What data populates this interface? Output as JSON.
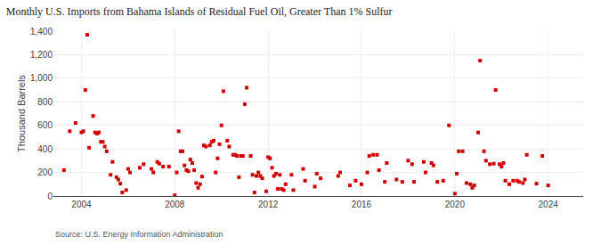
{
  "chart_data": {
    "type": "scatter",
    "title": "Monthly U.S. Imports from Bahama Islands of Residual Fuel Oil, Greater Than 1% Sulfur",
    "ylabel": "Thousand Barrels",
    "source": "Source: U.S. Energy Information Administration",
    "color": "#CC0000",
    "marker": "square",
    "grid": true,
    "xlim": [
      2002.8,
      2025.5
    ],
    "xticks": [
      2004,
      2008,
      2012,
      2016,
      2020,
      2024
    ],
    "ylim": [
      0,
      1400
    ],
    "yticks": [
      0,
      200,
      400,
      600,
      800,
      {
        "value": 1000,
        "label": "1,000"
      },
      {
        "value": 1200,
        "label": "1,200"
      },
      {
        "value": 1400,
        "label": "1,400"
      }
    ],
    "x": [
      2003.25,
      2003.5,
      2003.75,
      2004.0,
      2004.083,
      2004.167,
      2004.25,
      2004.33,
      2004.5,
      2004.583,
      2004.667,
      2004.75,
      2004.833,
      2004.917,
      2005.0,
      2005.083,
      2005.25,
      2005.333,
      2005.5,
      2005.583,
      2005.667,
      2005.75,
      2005.917,
      2006.0,
      2006.083,
      2006.5,
      2006.667,
      2007.0,
      2007.083,
      2007.25,
      2007.333,
      2007.5,
      2007.75,
      2008.0,
      2008.083,
      2008.167,
      2008.25,
      2008.333,
      2008.417,
      2008.5,
      2008.583,
      2008.667,
      2008.75,
      2008.833,
      2008.917,
      2009.0,
      2009.083,
      2009.167,
      2009.25,
      2009.333,
      2009.5,
      2009.583,
      2009.667,
      2009.75,
      2009.833,
      2009.917,
      2010.0,
      2010.083,
      2010.25,
      2010.333,
      2010.5,
      2010.583,
      2010.667,
      2010.75,
      2010.833,
      2010.917,
      2011.0,
      2011.083,
      2011.25,
      2011.333,
      2011.417,
      2011.5,
      2011.583,
      2011.667,
      2011.75,
      2011.917,
      2012.0,
      2012.083,
      2012.167,
      2012.25,
      2012.333,
      2012.417,
      2012.5,
      2012.583,
      2012.667,
      2012.75,
      2013.0,
      2013.083,
      2013.5,
      2013.583,
      2014.0,
      2014.083,
      2014.25,
      2015.0,
      2015.083,
      2015.5,
      2015.75,
      2016.0,
      2016.25,
      2016.333,
      2016.5,
      2016.667,
      2016.75,
      2017.0,
      2017.083,
      2017.5,
      2017.75,
      2018.0,
      2018.167,
      2018.25,
      2018.667,
      2018.75,
      2019.0,
      2019.083,
      2019.25,
      2019.5,
      2019.75,
      2020.0,
      2020.083,
      2020.167,
      2020.333,
      2020.5,
      2020.667,
      2020.75,
      2020.833,
      2021.0,
      2021.083,
      2021.25,
      2021.333,
      2021.5,
      2021.667,
      2021.75,
      2021.917,
      2022.0,
      2022.083,
      2022.167,
      2022.333,
      2022.5,
      2022.667,
      2022.75,
      2022.917,
      2023.0,
      2023.083,
      2023.5,
      2023.75,
      2024.0
    ],
    "values": [
      220,
      550,
      620,
      540,
      550,
      900,
      1370,
      410,
      680,
      540,
      530,
      540,
      460,
      460,
      420,
      380,
      180,
      290,
      160,
      140,
      105,
      30,
      50,
      230,
      200,
      240,
      270,
      230,
      200,
      290,
      275,
      250,
      250,
      6,
      200,
      550,
      380,
      380,
      260,
      220,
      210,
      310,
      280,
      220,
      110,
      70,
      100,
      165,
      430,
      420,
      430,
      460,
      470,
      200,
      320,
      440,
      600,
      890,
      470,
      420,
      350,
      350,
      340,
      160,
      340,
      340,
      780,
      920,
      340,
      180,
      30,
      170,
      200,
      170,
      150,
      40,
      330,
      320,
      240,
      170,
      190,
      60,
      180,
      60,
      50,
      100,
      180,
      50,
      230,
      130,
      80,
      190,
      150,
      170,
      200,
      90,
      130,
      100,
      200,
      340,
      350,
      350,
      220,
      120,
      280,
      140,
      120,
      300,
      270,
      120,
      290,
      200,
      280,
      260,
      120,
      130,
      600,
      20,
      190,
      380,
      380,
      110,
      100,
      70,
      90,
      540,
      1150,
      380,
      300,
      270,
      275,
      900,
      270,
      250,
      280,
      130,
      100,
      130,
      130,
      120,
      110,
      140,
      350,
      105,
      340,
      90
    ]
  }
}
